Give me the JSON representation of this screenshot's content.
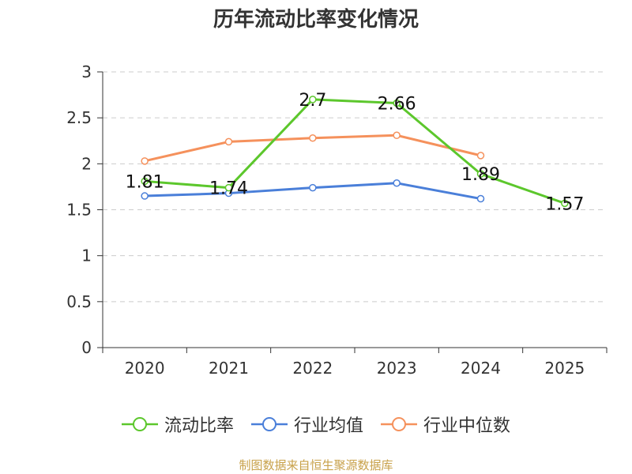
{
  "chart_data": {
    "type": "line",
    "title": "历年流动比率变化情况",
    "categories": [
      "2020",
      "2021",
      "2022",
      "2023",
      "2024",
      "2025"
    ],
    "ylim": [
      0,
      3
    ],
    "yticks": [
      "0",
      "0.5",
      "1",
      "1.5",
      "2",
      "2.5",
      "3"
    ],
    "grid": true,
    "legend_position": "bottom",
    "series": [
      {
        "name": "流动比率",
        "color": "#5cc72c",
        "values": [
          1.81,
          1.74,
          2.7,
          2.66,
          1.89,
          1.57
        ],
        "labels": [
          "1.81",
          "1.74",
          "2.7",
          "2.66",
          "1.89",
          "1.57"
        ]
      },
      {
        "name": "行业均值",
        "color": "#4a7fd9",
        "values": [
          1.65,
          1.68,
          1.74,
          1.79,
          1.62,
          null
        ]
      },
      {
        "name": "行业中位数",
        "color": "#f5915c",
        "values": [
          2.03,
          2.24,
          2.28,
          2.31,
          2.09,
          null
        ]
      }
    ],
    "source": "制图数据来自恒生聚源数据库"
  }
}
